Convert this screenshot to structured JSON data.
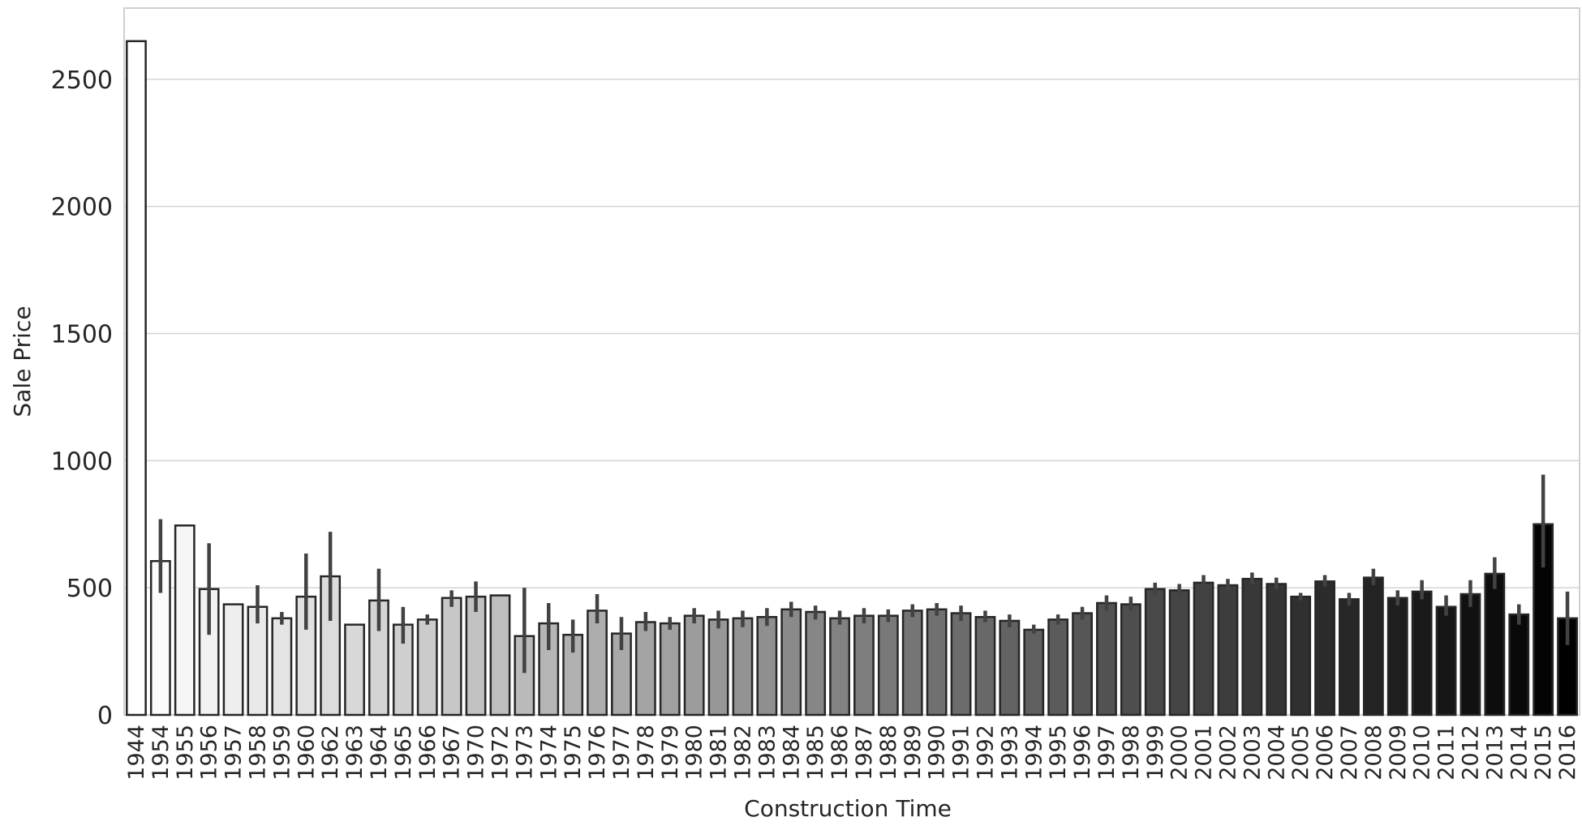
{
  "chart_data": {
    "type": "bar",
    "xlabel": "Construction Time",
    "ylabel": "Sale Price",
    "ylim": [
      0,
      2780
    ],
    "yticks": [
      0,
      500,
      1000,
      1500,
      2000,
      2500
    ],
    "grid": true,
    "grid_axis": "y",
    "categories": [
      "1944",
      "1954",
      "1955",
      "1956",
      "1957",
      "1958",
      "1959",
      "1960",
      "1962",
      "1963",
      "1964",
      "1965",
      "1966",
      "1967",
      "1970",
      "1972",
      "1973",
      "1974",
      "1975",
      "1976",
      "1977",
      "1978",
      "1979",
      "1980",
      "1981",
      "1982",
      "1983",
      "1984",
      "1985",
      "1986",
      "1987",
      "1988",
      "1989",
      "1990",
      "1991",
      "1992",
      "1993",
      "1994",
      "1995",
      "1996",
      "1997",
      "1998",
      "1999",
      "2000",
      "2001",
      "2002",
      "2003",
      "2004",
      "2005",
      "2006",
      "2007",
      "2008",
      "2009",
      "2010",
      "2011",
      "2012",
      "2013",
      "2014",
      "2015",
      "2016"
    ],
    "values": [
      2650,
      605,
      745,
      495,
      435,
      425,
      380,
      465,
      545,
      355,
      450,
      355,
      375,
      460,
      465,
      470,
      310,
      360,
      315,
      410,
      320,
      365,
      360,
      390,
      375,
      380,
      385,
      415,
      405,
      380,
      390,
      390,
      410,
      415,
      400,
      385,
      370,
      335,
      375,
      400,
      440,
      435,
      495,
      490,
      520,
      510,
      535,
      515,
      465,
      525,
      455,
      540,
      460,
      485,
      425,
      475,
      555,
      395,
      750,
      380
    ],
    "error_low": [
      null,
      480,
      null,
      315,
      null,
      360,
      355,
      335,
      370,
      null,
      330,
      280,
      355,
      425,
      405,
      null,
      165,
      255,
      245,
      360,
      255,
      330,
      335,
      360,
      340,
      345,
      350,
      385,
      375,
      355,
      360,
      365,
      385,
      390,
      370,
      365,
      345,
      320,
      355,
      375,
      410,
      410,
      470,
      465,
      495,
      490,
      515,
      495,
      450,
      505,
      430,
      510,
      430,
      455,
      390,
      425,
      495,
      355,
      580,
      275
    ],
    "error_high": [
      null,
      770,
      null,
      675,
      null,
      510,
      405,
      635,
      720,
      null,
      575,
      425,
      395,
      490,
      525,
      null,
      500,
      440,
      375,
      475,
      385,
      405,
      385,
      420,
      410,
      410,
      420,
      445,
      430,
      410,
      420,
      415,
      435,
      440,
      430,
      410,
      395,
      355,
      395,
      425,
      470,
      465,
      520,
      515,
      550,
      535,
      560,
      540,
      480,
      550,
      480,
      575,
      490,
      530,
      470,
      530,
      620,
      435,
      945,
      485
    ],
    "palette": {
      "light_bar": "#ffffff",
      "dark_bar": "#000000",
      "edge": "#262626",
      "error_bar": "#424242",
      "grid": "#d4d4d4",
      "frame": "#cfcfcf",
      "text": "#262626"
    }
  }
}
